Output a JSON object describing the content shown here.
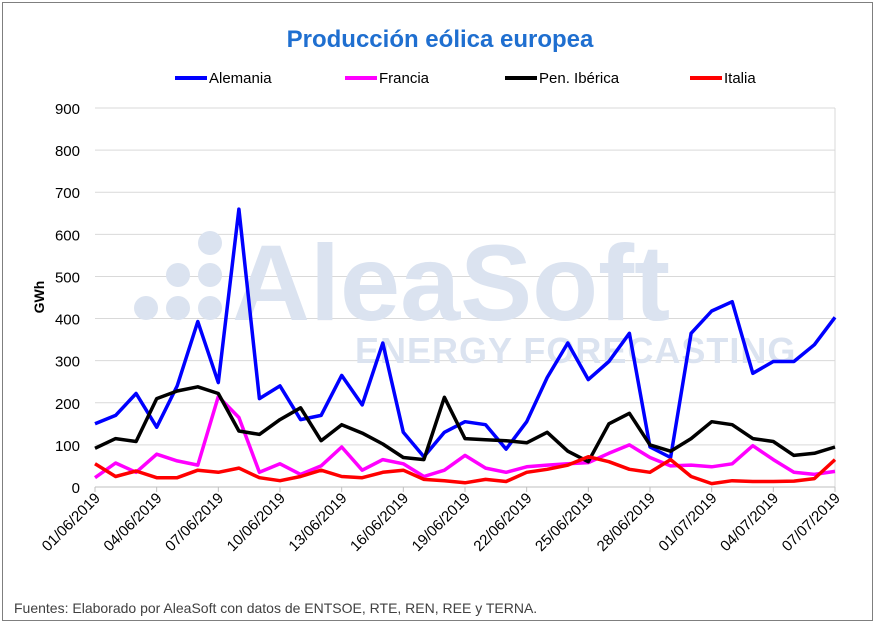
{
  "chart_data": {
    "type": "line",
    "title": "Producción eólica europea",
    "ylabel": "GWh",
    "xlabel": "",
    "ylim": [
      0,
      900
    ],
    "yticks": [
      0,
      100,
      200,
      300,
      400,
      500,
      600,
      700,
      800,
      900
    ],
    "grid": true,
    "legend_position": "top",
    "x": [
      "01/06/2019",
      "02/06/2019",
      "03/06/2019",
      "04/06/2019",
      "05/06/2019",
      "06/06/2019",
      "07/06/2019",
      "08/06/2019",
      "09/06/2019",
      "10/06/2019",
      "11/06/2019",
      "12/06/2019",
      "13/06/2019",
      "14/06/2019",
      "15/06/2019",
      "16/06/2019",
      "17/06/2019",
      "18/06/2019",
      "19/06/2019",
      "20/06/2019",
      "21/06/2019",
      "22/06/2019",
      "23/06/2019",
      "24/06/2019",
      "25/06/2019",
      "26/06/2019",
      "27/06/2019",
      "28/06/2019",
      "29/06/2019",
      "30/06/2019",
      "01/07/2019",
      "02/07/2019",
      "03/07/2019",
      "04/07/2019",
      "05/07/2019",
      "06/07/2019",
      "07/07/2019"
    ],
    "xtick_labels": [
      "01/06/2019",
      "04/06/2019",
      "07/06/2019",
      "10/06/2019",
      "13/06/2019",
      "16/06/2019",
      "19/06/2019",
      "22/06/2019",
      "25/06/2019",
      "28/06/2019",
      "01/07/2019",
      "04/07/2019",
      "07/07/2019"
    ],
    "series": [
      {
        "name": "Alemania",
        "color": "#0000ff",
        "values": [
          150,
          170,
          222,
          142,
          240,
          393,
          248,
          660,
          210,
          240,
          160,
          170,
          265,
          195,
          342,
          130,
          72,
          130,
          155,
          148,
          90,
          155,
          260,
          342,
          255,
          298,
          365,
          95,
          70,
          365,
          418,
          440,
          270,
          298,
          298,
          338,
          403
        ]
      },
      {
        "name": "Francia",
        "color": "#ff00ff",
        "values": [
          22,
          57,
          35,
          78,
          62,
          52,
          215,
          165,
          35,
          55,
          30,
          50,
          95,
          40,
          65,
          55,
          25,
          40,
          75,
          45,
          35,
          48,
          52,
          55,
          58,
          80,
          100,
          70,
          50,
          52,
          48,
          55,
          98,
          65,
          35,
          30,
          37
        ]
      },
      {
        "name": "Pen. Ibérica",
        "color": "#000000",
        "values": [
          92,
          115,
          108,
          210,
          228,
          238,
          222,
          133,
          125,
          160,
          188,
          110,
          148,
          128,
          102,
          70,
          65,
          213,
          115,
          112,
          110,
          105,
          130,
          85,
          60,
          150,
          175,
          100,
          85,
          115,
          155,
          148,
          115,
          108,
          75,
          80,
          95
        ]
      },
      {
        "name": "Italia",
        "color": "#ff0000",
        "values": [
          55,
          25,
          38,
          22,
          22,
          40,
          35,
          45,
          22,
          15,
          25,
          40,
          25,
          22,
          35,
          40,
          18,
          15,
          10,
          18,
          13,
          35,
          42,
          52,
          72,
          60,
          42,
          35,
          65,
          25,
          8,
          15,
          13,
          13,
          14,
          20,
          65
        ]
      }
    ]
  },
  "watermark": {
    "brand": "AleaSoft",
    "tagline": "ENERGY FORECASTING"
  },
  "footnote": "Fuentes: Elaborado por AleaSoft con datos de ENTSOE, RTE, REN, REE y TERNA."
}
